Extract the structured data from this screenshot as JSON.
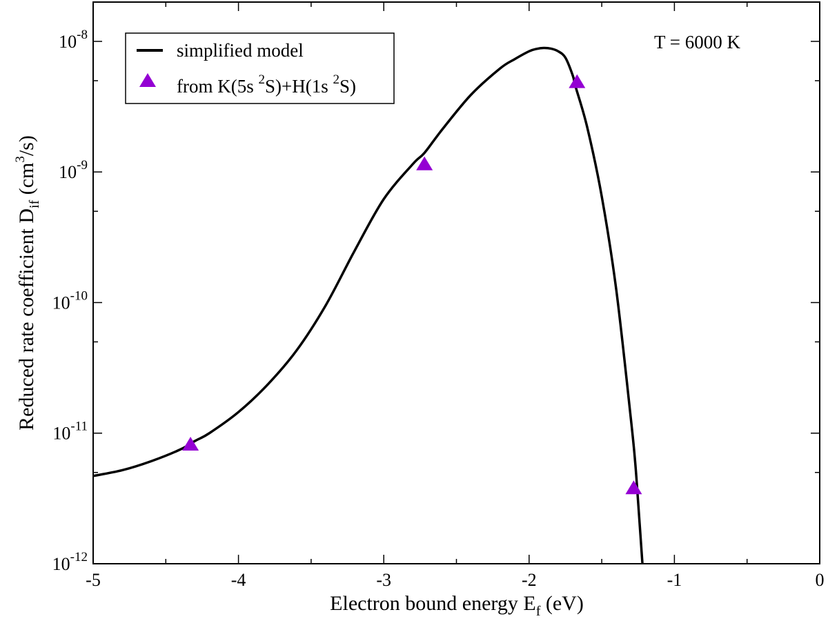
{
  "chart_data": {
    "type": "line",
    "title": "",
    "xlabel": "Electron bound energy E_f (eV)",
    "ylabel": "Reduced rate coefficient D_if (cm^3/s)",
    "xlabel_parts": {
      "main": "Electron bound energy E",
      "sub": "f",
      "rest": " (eV)"
    },
    "ylabel_parts": {
      "main": "Reduced rate coefficient D",
      "sub": "if",
      "mid": " (cm",
      "sup": "3",
      "rest": "/s)"
    },
    "xlim": [
      -5,
      0
    ],
    "ylim": [
      1e-12,
      2e-08
    ],
    "yscale": "log",
    "grid": false,
    "x_ticks": [
      {
        "value": -5,
        "label": "-5"
      },
      {
        "value": -4,
        "label": "-4"
      },
      {
        "value": -3,
        "label": "-3"
      },
      {
        "value": -2,
        "label": "-2"
      },
      {
        "value": -1,
        "label": "-1"
      },
      {
        "value": 0,
        "label": "0"
      }
    ],
    "y_ticks": [
      {
        "value": 1e-12,
        "base": "10",
        "exp": "-12"
      },
      {
        "value": 1e-11,
        "base": "10",
        "exp": "-11"
      },
      {
        "value": 1e-10,
        "base": "10",
        "exp": "-10"
      },
      {
        "value": 1e-09,
        "base": "10",
        "exp": "-9"
      },
      {
        "value": 1e-08,
        "base": "10",
        "exp": "-8"
      }
    ],
    "annotation": "T = 6000 K",
    "legend_position": "top-left",
    "series": [
      {
        "name": "simplified model",
        "kind": "line",
        "color": "#000000",
        "x": [
          -5.0,
          -4.8,
          -4.6,
          -4.4,
          -4.3,
          -4.2,
          -4.0,
          -3.8,
          -3.6,
          -3.4,
          -3.2,
          -3.0,
          -2.8,
          -2.72,
          -2.6,
          -2.4,
          -2.2,
          -2.1,
          -2.0,
          -1.95,
          -1.9,
          -1.85,
          -1.8,
          -1.75,
          -1.7,
          -1.68,
          -1.6,
          -1.5,
          -1.4,
          -1.3,
          -1.27,
          -1.25,
          -1.22
        ],
        "y": [
          4.7e-12,
          5.2e-12,
          6.1e-12,
          7.5e-12,
          8.7e-12,
          1e-11,
          1.45e-11,
          2.35e-11,
          4.3e-11,
          9.5e-11,
          2.5e-10,
          6.2e-10,
          1.15e-09,
          1.4e-09,
          2.1e-09,
          3.9e-09,
          6.2e-09,
          7.3e-09,
          8.4e-09,
          8.75e-09,
          8.9e-09,
          8.8e-09,
          8.4e-09,
          7.5e-09,
          5.5e-09,
          4.5e-09,
          2.2e-09,
          6.5e-10,
          1.25e-10,
          1.3e-11,
          6e-12,
          3e-12,
          1e-12
        ]
      },
      {
        "name": "from K(5s ²S)+H(1s ²S)",
        "name_parts": {
          "a": "from K(5s ",
          "sup1": "2",
          "b": "S)+H(1s ",
          "sup2": "2",
          "c": "S)"
        },
        "kind": "markers",
        "marker": "triangle",
        "color": "#9400D3",
        "x": [
          -4.33,
          -2.72,
          -1.67,
          -1.28
        ],
        "y": [
          8.2e-12,
          1.15e-09,
          4.9e-09,
          3.8e-12
        ]
      }
    ]
  }
}
